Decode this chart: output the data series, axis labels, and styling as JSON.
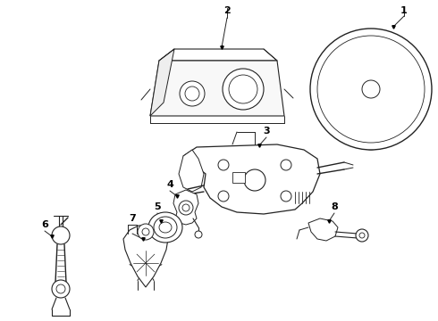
{
  "background_color": "#ffffff",
  "line_color": "#222222",
  "fig_width": 4.9,
  "fig_height": 3.6,
  "dpi": 100,
  "label_fontsize": 8
}
